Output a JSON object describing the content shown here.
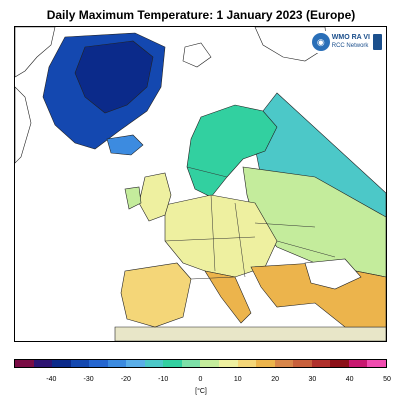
{
  "title": "Daily Maximum Temperature:  1 January 2023  (Europe)",
  "logo": {
    "line1": "WMO RA VI",
    "line2": "RCC Network",
    "globe_icon": "wmo-globe-icon"
  },
  "legend": {
    "unit": "[°C]",
    "tick_labels": [
      "-40",
      "-30",
      "-20",
      "-10",
      "0",
      "10",
      "20",
      "30",
      "40",
      "50"
    ],
    "colors": [
      "#7a0c45",
      "#2d1472",
      "#0b2a8a",
      "#1448b0",
      "#2566d0",
      "#3c8be0",
      "#5aaee8",
      "#4cc8c8",
      "#32d0a0",
      "#7de0a8",
      "#c4ec9c",
      "#eef0a0",
      "#f4d678",
      "#ecb44c",
      "#d8864a",
      "#c8603c",
      "#b0302c",
      "#8c1018",
      "#c81870",
      "#f04cb0"
    ]
  },
  "map": {
    "region": "Europe",
    "background_color": "#ffffff",
    "land_color": "#e8e6c8",
    "regions": [
      {
        "name": "Greenland",
        "color": "#1448b0"
      },
      {
        "name": "Greenland interior",
        "color": "#0b2a8a"
      },
      {
        "name": "Iceland",
        "color": "#3c8be0"
      },
      {
        "name": "Scandinavia",
        "color": "#32d0a0"
      },
      {
        "name": "Northern Russia",
        "color": "#4cc8c8"
      },
      {
        "name": "Central Europe",
        "color": "#eef0a0"
      },
      {
        "name": "Iberia",
        "color": "#f4d678"
      },
      {
        "name": "Mediterranean",
        "color": "#ecb44c"
      },
      {
        "name": "Eastern Europe",
        "color": "#c4ec9c"
      }
    ]
  }
}
